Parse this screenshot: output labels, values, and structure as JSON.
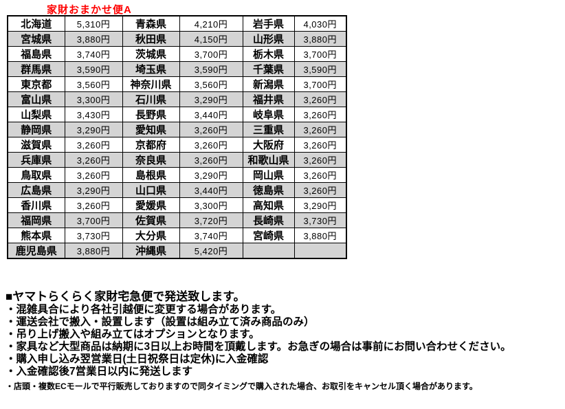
{
  "title": "家財おまかせ便A",
  "colors": {
    "title_red": "#ff0000",
    "row_alt_gray": "#d4d4d4",
    "border_black": "#000000",
    "text_black": "#000000"
  },
  "table": {
    "rows": [
      [
        {
          "pref": "北海道",
          "price": "5,310円"
        },
        {
          "pref": "青森県",
          "price": "4,210円"
        },
        {
          "pref": "岩手県",
          "price": "4,030円"
        }
      ],
      [
        {
          "pref": "宮城県",
          "price": "3,880円"
        },
        {
          "pref": "秋田県",
          "price": "4,150円"
        },
        {
          "pref": "山形県",
          "price": "3,880円"
        }
      ],
      [
        {
          "pref": "福島県",
          "price": "3,740円"
        },
        {
          "pref": "茨城県",
          "price": "3,700円"
        },
        {
          "pref": "栃木県",
          "price": "3,700円"
        }
      ],
      [
        {
          "pref": "群馬県",
          "price": "3,590円"
        },
        {
          "pref": "埼玉県",
          "price": "3,590円"
        },
        {
          "pref": "千葉県",
          "price": "3,590円"
        }
      ],
      [
        {
          "pref": "東京都",
          "price": "3,560円"
        },
        {
          "pref": "神奈川県",
          "price": "3,560円"
        },
        {
          "pref": "新潟県",
          "price": "3,700円"
        }
      ],
      [
        {
          "pref": "富山県",
          "price": "3,300円"
        },
        {
          "pref": "石川県",
          "price": "3,290円"
        },
        {
          "pref": "福井県",
          "price": "3,260円"
        }
      ],
      [
        {
          "pref": "山梨県",
          "price": "3,430円"
        },
        {
          "pref": "長野県",
          "price": "3,440円"
        },
        {
          "pref": "岐阜県",
          "price": "3,260円"
        }
      ],
      [
        {
          "pref": "静岡県",
          "price": "3,290円"
        },
        {
          "pref": "愛知県",
          "price": "3,260円"
        },
        {
          "pref": "三重県",
          "price": "3,260円"
        }
      ],
      [
        {
          "pref": "滋賀県",
          "price": "3,260円"
        },
        {
          "pref": "京都府",
          "price": "3,260円"
        },
        {
          "pref": "大阪府",
          "price": "3,260円"
        }
      ],
      [
        {
          "pref": "兵庫県",
          "price": "3,260円"
        },
        {
          "pref": "奈良県",
          "price": "3,260円"
        },
        {
          "pref": "和歌山県",
          "price": "3,260円"
        }
      ],
      [
        {
          "pref": "鳥取県",
          "price": "3,260円"
        },
        {
          "pref": "島根県",
          "price": "3,290円"
        },
        {
          "pref": "岡山県",
          "price": "3,260円"
        }
      ],
      [
        {
          "pref": "広島県",
          "price": "3,290円"
        },
        {
          "pref": "山口県",
          "price": "3,440円"
        },
        {
          "pref": "徳島県",
          "price": "3,260円"
        }
      ],
      [
        {
          "pref": "香川県",
          "price": "3,260円"
        },
        {
          "pref": "愛媛県",
          "price": "3,300円"
        },
        {
          "pref": "高知県",
          "price": "3,290円"
        }
      ],
      [
        {
          "pref": "福岡県",
          "price": "3,700円"
        },
        {
          "pref": "佐賀県",
          "price": "3,720円"
        },
        {
          "pref": "長崎県",
          "price": "3,730円"
        }
      ],
      [
        {
          "pref": "熊本県",
          "price": "3,730円"
        },
        {
          "pref": "大分県",
          "price": "3,740円"
        },
        {
          "pref": "宮崎県",
          "price": "3,880円"
        }
      ],
      [
        {
          "pref": "鹿児島県",
          "price": "3,880円"
        },
        {
          "pref": "沖縄県",
          "price": "5,420円"
        },
        {
          "pref": "",
          "price": ""
        }
      ]
    ]
  },
  "notes": {
    "heading": "■ヤマトらくらく家財宅急便で発送致します。",
    "bullets": [
      "・混雑具合により各社引越便に変更する場合があります。",
      "・運送会社で搬入・設置します（設置は組み立て済み商品のみ）",
      "・吊り上げ搬入や組み立てはオプションとなります。",
      "・家具など大型商品は納期に3日以上お時間を頂戴します。お急ぎの場合は事前にお問い合わせください。",
      "・購入申し込み翌営業日(土日祝祭日は定休)に入金確認",
      "・入金確認後7営業日以内に発送します"
    ],
    "footnote": "・店頭・複数ECモールで平行販売しておりますので同タイミングで購入された場合、お取引をキャンセル頂く場合があります。"
  }
}
